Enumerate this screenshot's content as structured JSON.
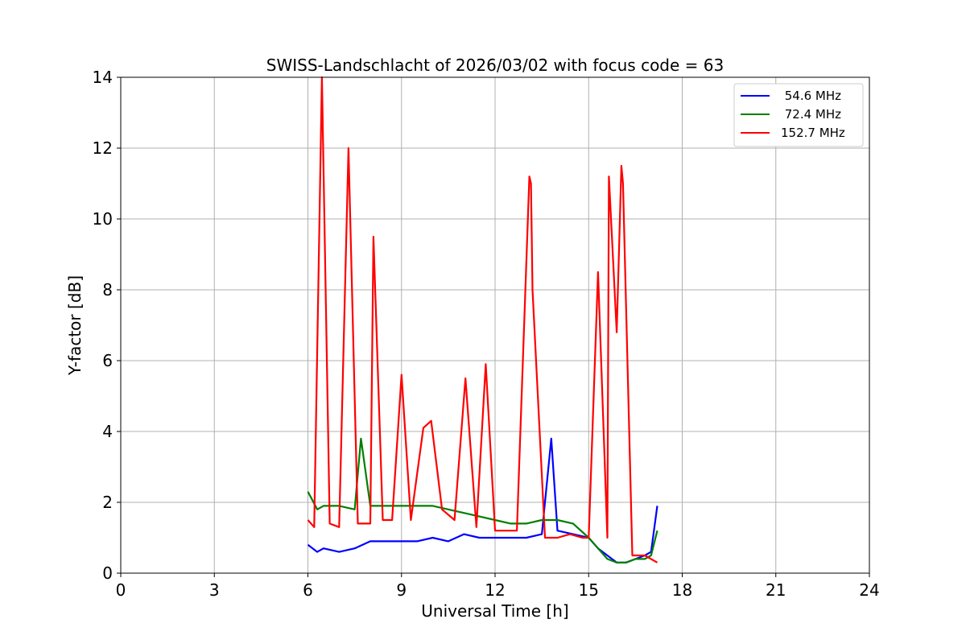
{
  "chart_data": {
    "type": "line",
    "title": "SWISS-Landschlacht of 2026/03/02 with focus code = 63",
    "xlabel": "Universal Time [h]",
    "ylabel": "Y-factor [dB]",
    "xlim": [
      0,
      24
    ],
    "ylim": [
      0,
      14
    ],
    "xticks": [
      "0",
      "3",
      "6",
      "9",
      "12",
      "15",
      "18",
      "21",
      "24"
    ],
    "yticks": [
      "0",
      "2",
      "4",
      "6",
      "8",
      "10",
      "12",
      "14"
    ],
    "grid": true,
    "legend_position": "top-right",
    "series": [
      {
        "name": " 54.6 MHz",
        "color": "#0000ff",
        "x": [
          6.0,
          6.3,
          6.5,
          7.0,
          7.5,
          8.0,
          8.5,
          9.0,
          9.5,
          10.0,
          10.5,
          11.0,
          11.5,
          12.0,
          12.5,
          13.0,
          13.5,
          13.8,
          14.0,
          14.5,
          15.0,
          15.3,
          15.6,
          15.9,
          16.2,
          16.5,
          16.8,
          17.0,
          17.2
        ],
        "y": [
          0.8,
          0.6,
          0.7,
          0.6,
          0.7,
          0.9,
          0.9,
          0.9,
          0.9,
          1.0,
          0.9,
          1.1,
          1.0,
          1.0,
          1.0,
          1.0,
          1.1,
          3.8,
          1.2,
          1.1,
          1.0,
          0.7,
          0.5,
          0.3,
          0.3,
          0.4,
          0.5,
          0.6,
          1.9
        ]
      },
      {
        "name": " 72.4 MHz",
        "color": "#008000",
        "x": [
          6.0,
          6.3,
          6.5,
          7.0,
          7.5,
          7.7,
          8.0,
          8.5,
          9.0,
          9.5,
          10.0,
          10.5,
          11.0,
          11.5,
          12.0,
          12.5,
          13.0,
          13.5,
          14.0,
          14.5,
          15.0,
          15.3,
          15.6,
          15.9,
          16.2,
          16.5,
          16.8,
          17.0,
          17.2
        ],
        "y": [
          2.3,
          1.8,
          1.9,
          1.9,
          1.8,
          3.8,
          1.9,
          1.9,
          1.9,
          1.9,
          1.9,
          1.8,
          1.7,
          1.6,
          1.5,
          1.4,
          1.4,
          1.5,
          1.5,
          1.4,
          1.0,
          0.7,
          0.4,
          0.3,
          0.3,
          0.4,
          0.4,
          0.5,
          1.2
        ]
      },
      {
        "name": "152.7 MHz",
        "color": "#ff0000",
        "x": [
          6.0,
          6.2,
          6.45,
          6.7,
          7.0,
          7.3,
          7.6,
          8.0,
          8.1,
          8.4,
          8.7,
          9.0,
          9.3,
          9.7,
          9.95,
          10.3,
          10.7,
          11.05,
          11.4,
          11.7,
          12.0,
          12.3,
          12.7,
          13.1,
          13.15,
          13.2,
          13.6,
          14.0,
          14.4,
          14.8,
          15.0,
          15.3,
          15.6,
          15.65,
          15.9,
          16.05,
          16.1,
          16.4,
          16.8,
          17.2
        ],
        "y": [
          1.5,
          1.3,
          14.0,
          1.4,
          1.3,
          12.0,
          1.4,
          1.4,
          9.5,
          1.5,
          1.5,
          5.6,
          1.5,
          4.1,
          4.3,
          1.8,
          1.5,
          5.5,
          1.3,
          5.9,
          1.2,
          1.2,
          1.2,
          11.2,
          11.0,
          8.0,
          1.0,
          1.0,
          1.1,
          1.0,
          1.0,
          8.5,
          1.0,
          11.2,
          6.8,
          11.5,
          11.0,
          0.5,
          0.5,
          0.3
        ]
      }
    ]
  }
}
